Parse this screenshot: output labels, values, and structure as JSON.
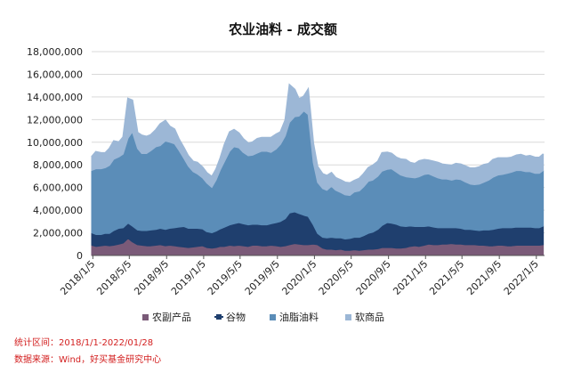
{
  "chart_data": {
    "type": "area",
    "stacked": true,
    "title": "农业油料 - 成交额",
    "ylim": [
      0,
      18000000
    ],
    "yticks": [
      0,
      2000000,
      4000000,
      6000000,
      8000000,
      10000000,
      12000000,
      14000000,
      16000000,
      18000000
    ],
    "ytick_labels": [
      "0",
      "2,000,000",
      "4,000,000",
      "6,000,000",
      "8,000,000",
      "10,000,000",
      "12,000,000",
      "14,000,000",
      "16,000,000",
      "18,000,000"
    ],
    "xlim": [
      "2018-01-01",
      "2022-02-01"
    ],
    "xtick_labels": [
      "2018/1/5",
      "2018/5/5",
      "2018/9/5",
      "2019/1/5",
      "2019/5/5",
      "2019/9/5",
      "2020/1/5",
      "2020/5/5",
      "2020/9/5",
      "2021/1/5",
      "2021/5/5",
      "2021/9/5",
      "2022/1/5"
    ],
    "xtick_dates": [
      "2018-01-05",
      "2018-05-05",
      "2018-09-05",
      "2019-01-05",
      "2019-05-05",
      "2019-09-05",
      "2020-01-05",
      "2020-05-05",
      "2020-09-05",
      "2021-01-05",
      "2021-05-05",
      "2021-09-05",
      "2022-01-05"
    ],
    "grid": "horizontal",
    "legend_position": "bottom",
    "x": [
      "2018-01-01",
      "2018-01-15",
      "2018-02-01",
      "2018-02-15",
      "2018-03-01",
      "2018-03-15",
      "2018-04-01",
      "2018-04-15",
      "2018-05-01",
      "2018-05-15",
      "2018-06-01",
      "2018-06-15",
      "2018-07-01",
      "2018-07-15",
      "2018-08-01",
      "2018-08-15",
      "2018-09-01",
      "2018-09-15",
      "2018-10-01",
      "2018-10-15",
      "2018-11-01",
      "2018-11-15",
      "2018-12-01",
      "2018-12-15",
      "2019-01-01",
      "2019-01-15",
      "2019-02-01",
      "2019-02-15",
      "2019-03-01",
      "2019-03-15",
      "2019-04-01",
      "2019-04-15",
      "2019-05-01",
      "2019-05-15",
      "2019-06-01",
      "2019-06-15",
      "2019-07-01",
      "2019-07-15",
      "2019-08-01",
      "2019-08-15",
      "2019-09-01",
      "2019-09-15",
      "2019-10-01",
      "2019-10-15",
      "2019-11-01",
      "2019-11-15",
      "2019-12-01",
      "2019-12-15",
      "2020-01-01",
      "2020-01-15",
      "2020-02-01",
      "2020-02-15",
      "2020-03-01",
      "2020-03-15",
      "2020-04-01",
      "2020-04-15",
      "2020-05-01",
      "2020-05-15",
      "2020-06-01",
      "2020-06-15",
      "2020-07-01",
      "2020-07-15",
      "2020-08-01",
      "2020-08-15",
      "2020-09-01",
      "2020-09-15",
      "2020-10-01",
      "2020-10-15",
      "2020-11-01",
      "2020-11-15",
      "2020-12-01",
      "2020-12-15",
      "2021-01-01",
      "2021-01-15",
      "2021-02-01",
      "2021-02-15",
      "2021-03-01",
      "2021-03-15",
      "2021-04-01",
      "2021-04-15",
      "2021-05-01",
      "2021-05-15",
      "2021-06-01",
      "2021-06-15",
      "2021-07-01",
      "2021-07-15",
      "2021-08-01",
      "2021-08-15",
      "2021-09-01",
      "2021-09-15",
      "2021-10-01",
      "2021-10-15",
      "2021-11-01",
      "2021-11-15",
      "2021-12-01",
      "2021-12-15",
      "2022-01-01",
      "2022-01-15",
      "2022-01-28"
    ],
    "series": [
      {
        "name": "农副产品",
        "color": "#7a5a78",
        "values": [
          900000,
          800000,
          850000,
          900000,
          850000,
          900000,
          1000000,
          1100000,
          1500000,
          1200000,
          950000,
          900000,
          850000,
          850000,
          900000,
          950000,
          850000,
          900000,
          850000,
          800000,
          750000,
          700000,
          750000,
          800000,
          850000,
          700000,
          650000,
          700000,
          800000,
          800000,
          900000,
          850000,
          900000,
          850000,
          800000,
          900000,
          900000,
          850000,
          850000,
          900000,
          850000,
          800000,
          850000,
          950000,
          1050000,
          1000000,
          950000,
          950000,
          1000000,
          950000,
          650000,
          550000,
          550000,
          500000,
          550000,
          450000,
          450000,
          500000,
          450000,
          500000,
          550000,
          550000,
          600000,
          700000,
          700000,
          700000,
          650000,
          650000,
          700000,
          800000,
          850000,
          800000,
          900000,
          1000000,
          950000,
          950000,
          1000000,
          1000000,
          1050000,
          1000000,
          1000000,
          950000,
          950000,
          950000,
          900000,
          900000,
          850000,
          850000,
          900000,
          900000,
          850000,
          850000,
          900000,
          900000,
          900000,
          900000,
          900000,
          900000,
          950000
        ]
      },
      {
        "name": "谷物",
        "color": "#1f3f6e",
        "values": [
          1100000,
          1050000,
          1000000,
          1050000,
          1100000,
          1300000,
          1400000,
          1350000,
          1350000,
          1400000,
          1300000,
          1300000,
          1350000,
          1400000,
          1400000,
          1450000,
          1450000,
          1500000,
          1600000,
          1700000,
          1800000,
          1700000,
          1650000,
          1600000,
          1500000,
          1400000,
          1350000,
          1450000,
          1550000,
          1700000,
          1800000,
          1950000,
          2000000,
          1950000,
          1900000,
          1850000,
          1850000,
          1850000,
          1850000,
          1900000,
          2050000,
          2200000,
          2400000,
          2800000,
          2800000,
          2700000,
          2600000,
          2500000,
          1700000,
          1000000,
          950000,
          1000000,
          1050000,
          1050000,
          1000000,
          1000000,
          1050000,
          1100000,
          1150000,
          1250000,
          1400000,
          1500000,
          1700000,
          1950000,
          2200000,
          2150000,
          2100000,
          1950000,
          1850000,
          1800000,
          1700000,
          1750000,
          1650000,
          1600000,
          1550000,
          1500000,
          1450000,
          1450000,
          1400000,
          1450000,
          1400000,
          1350000,
          1350000,
          1300000,
          1300000,
          1350000,
          1400000,
          1450000,
          1500000,
          1550000,
          1600000,
          1600000,
          1600000,
          1600000,
          1600000,
          1600000,
          1550000,
          1550000,
          1650000
        ]
      },
      {
        "name": "油脂油料",
        "color": "#5b8db8",
        "values": [
          5500000,
          5800000,
          5800000,
          5800000,
          6000000,
          6300000,
          6300000,
          6500000,
          7500000,
          8300000,
          7200000,
          6800000,
          6800000,
          7000000,
          7300000,
          7300000,
          7800000,
          7600000,
          7400000,
          6800000,
          6000000,
          5500000,
          5000000,
          4800000,
          4500000,
          4300000,
          4000000,
          4500000,
          5200000,
          5800000,
          6500000,
          6800000,
          6600000,
          6300000,
          6100000,
          6100000,
          6300000,
          6500000,
          6500000,
          6300000,
          6500000,
          6800000,
          7300000,
          8000000,
          8400000,
          8600000,
          9200000,
          9000000,
          5500000,
          4500000,
          4300000,
          4200000,
          4500000,
          4200000,
          4000000,
          3900000,
          3800000,
          4000000,
          4100000,
          4300000,
          4600000,
          4600000,
          4700000,
          4800000,
          4700000,
          4800000,
          4600000,
          4500000,
          4400000,
          4300000,
          4300000,
          4400000,
          4600000,
          4600000,
          4500000,
          4400000,
          4300000,
          4300000,
          4200000,
          4300000,
          4300000,
          4200000,
          4000000,
          4000000,
          4100000,
          4200000,
          4400000,
          4600000,
          4700000,
          4700000,
          4800000,
          4900000,
          5000000,
          5000000,
          4900000,
          4900000,
          4800000,
          4800000,
          4900000
        ]
      },
      {
        "name": "软商品",
        "color": "#9cb7d6",
        "values": [
          1200000,
          1500000,
          1400000,
          1300000,
          1500000,
          1600000,
          1300000,
          1500000,
          3500000,
          2800000,
          1400000,
          1600000,
          1500000,
          1400000,
          1500000,
          1900000,
          1800000,
          1400000,
          1300000,
          1000000,
          950000,
          900000,
          900000,
          1000000,
          950000,
          900000,
          950000,
          950000,
          1050000,
          1500000,
          1700000,
          1500000,
          1300000,
          1200000,
          1100000,
          1150000,
          1250000,
          1200000,
          1200000,
          1300000,
          1300000,
          1100000,
          1400000,
          3300000,
          2400000,
          1500000,
          1300000,
          2200000,
          1700000,
          1400000,
          1300000,
          1300000,
          1200000,
          1100000,
          1100000,
          1100000,
          1100000,
          1000000,
          1100000,
          1150000,
          1200000,
          1300000,
          1300000,
          1600000,
          1500000,
          1350000,
          1300000,
          1400000,
          1500000,
          1300000,
          1250000,
          1400000,
          1300000,
          1200000,
          1300000,
          1350000,
          1300000,
          1250000,
          1300000,
          1350000,
          1350000,
          1400000,
          1400000,
          1450000,
          1500000,
          1550000,
          1450000,
          1550000,
          1500000,
          1450000,
          1350000,
          1300000,
          1350000,
          1400000,
          1350000,
          1400000,
          1400000,
          1400000,
          1450000
        ]
      }
    ]
  },
  "footer": {
    "stat_period": "统计区间：2018/1/1-2022/01/28",
    "source": "数据来源：Wind，好买基金研究中心"
  }
}
